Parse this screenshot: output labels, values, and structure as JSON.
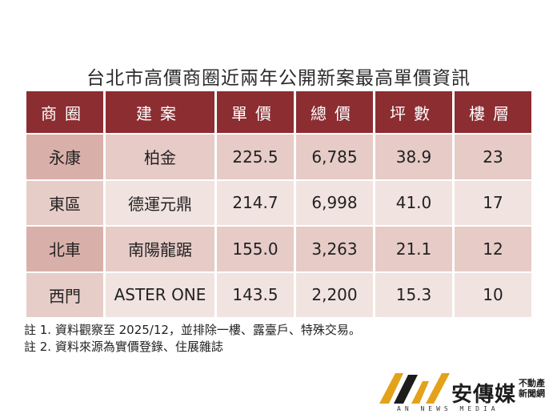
{
  "title": "台北市高價商圈近兩年公開新案最高單價資訊",
  "table": {
    "headers": [
      "商圈",
      "建案",
      "單價",
      "總價",
      "坪數",
      "樓層"
    ],
    "rows": [
      [
        "永康",
        "柏金",
        "225.5",
        "6,785",
        "38.9",
        "23"
      ],
      [
        "東區",
        "德運元鼎",
        "214.7",
        "6,998",
        "41.0",
        "17"
      ],
      [
        "北車",
        "南陽龍踞",
        "155.0",
        "3,263",
        "21.1",
        "12"
      ],
      [
        "西門",
        "ASTER ONE",
        "143.5",
        "2,200",
        "15.3",
        "10"
      ]
    ]
  },
  "notes": [
    "註 1. 資料觀察至 2025/12，並排除一樓、露臺戶、特殊交易。",
    "註 2. 資料來源為實價登錄、住展雜誌"
  ],
  "logo": {
    "brand": "安傳媒",
    "tag_line1": "不動產",
    "tag_line2": "新聞網",
    "english": "AN NEWS MEDIA",
    "gold": "#e3a21a",
    "black": "#1c1c1c"
  },
  "colors": {
    "header_bg": "#8c2d31",
    "row_odd": "#e6cbc7",
    "row_even": "#f1e3e0"
  }
}
